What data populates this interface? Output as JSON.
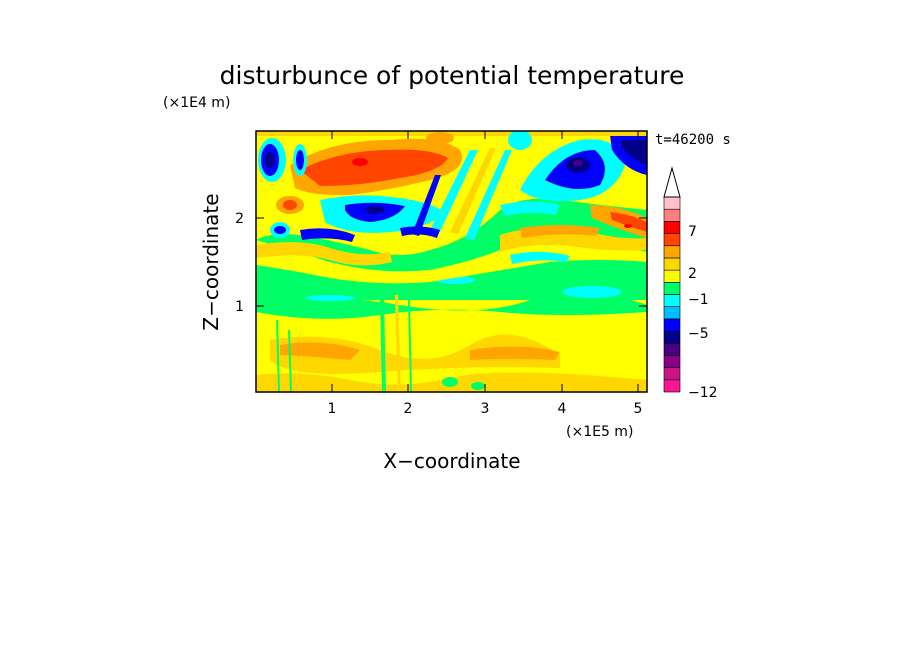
{
  "chart_data": {
    "type": "heatmap",
    "title": "disturbunce of potential temperature",
    "xlabel": "X−coordinate",
    "ylabel": "Z−coordinate",
    "x_unit": "(×1E5 m)",
    "y_unit": "(×1E4 m)",
    "time_label": "t=46200 s",
    "xlim": [
      0,
      5.15
    ],
    "ylim": [
      0,
      2.95
    ],
    "x_ticks": [
      "1",
      "2",
      "3",
      "4",
      "5"
    ],
    "y_ticks": [
      "1",
      "2"
    ],
    "colorbar": {
      "tick_labels": [
        "7",
        "2",
        "−1",
        "−5",
        "−12"
      ],
      "colors": [
        "#ff1493",
        "#c71585",
        "#8b008b",
        "#4b0082",
        "#00008b",
        "#0000ff",
        "#00bfff",
        "#00ffff",
        "#00ff66",
        "#ffff00",
        "#ffd700",
        "#ffa500",
        "#ff4500",
        "#ff0000",
        "#ff7f7f",
        "#ffc0cb"
      ]
    },
    "field_description": "alternating positive/negative anomaly bands; strongest negative centers near (4.2,2.6), (5.0,2.7), (0.2,2.6); positive anomalies near (1.5,2.5), (2.1,2.7), (4.9,1.9)"
  }
}
